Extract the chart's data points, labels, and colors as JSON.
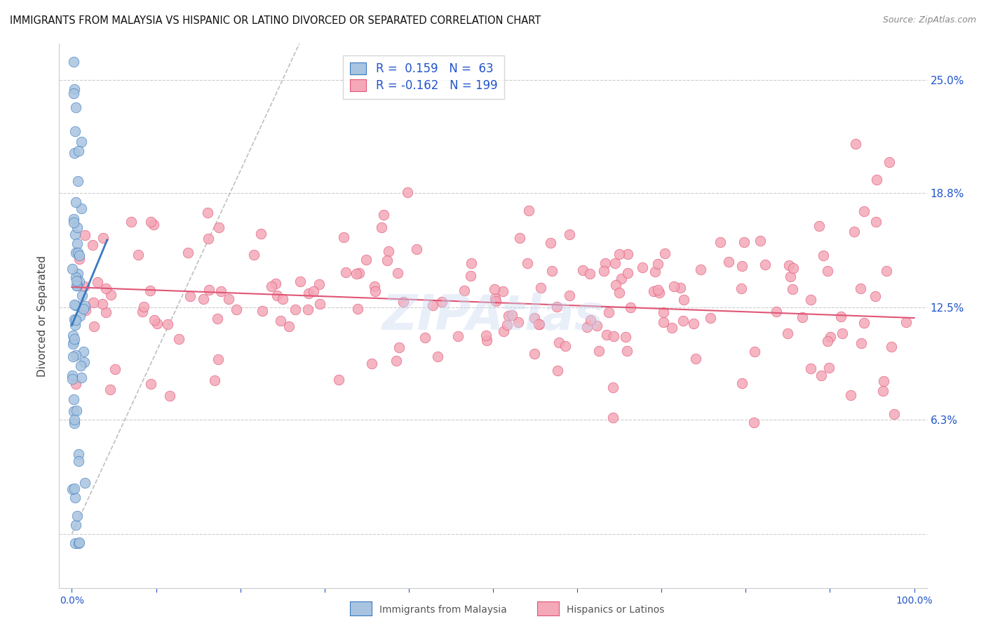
{
  "title": "IMMIGRANTS FROM MALAYSIA VS HISPANIC OR LATINO DIVORCED OR SEPARATED CORRELATION CHART",
  "source": "Source: ZipAtlas.com",
  "ylabel": "Divorced or Separated",
  "legend_labels": [
    "Immigrants from Malaysia",
    "Hispanics or Latinos"
  ],
  "blue_R": 0.159,
  "blue_N": 63,
  "pink_R": -0.162,
  "pink_N": 199,
  "blue_color": "#a8c4e0",
  "pink_color": "#f4a8b8",
  "blue_line_color": "#3a7abf",
  "pink_line_color": "#e05575",
  "dashed_line_color": "#b0b0b0",
  "watermark": "ZIPAtlas",
  "xmin": 0.0,
  "xmax": 1.0,
  "ymin": -0.03,
  "ymax": 0.27,
  "axis_color": "#2255cc",
  "background_color": "#ffffff",
  "legend_color": "#2255cc"
}
